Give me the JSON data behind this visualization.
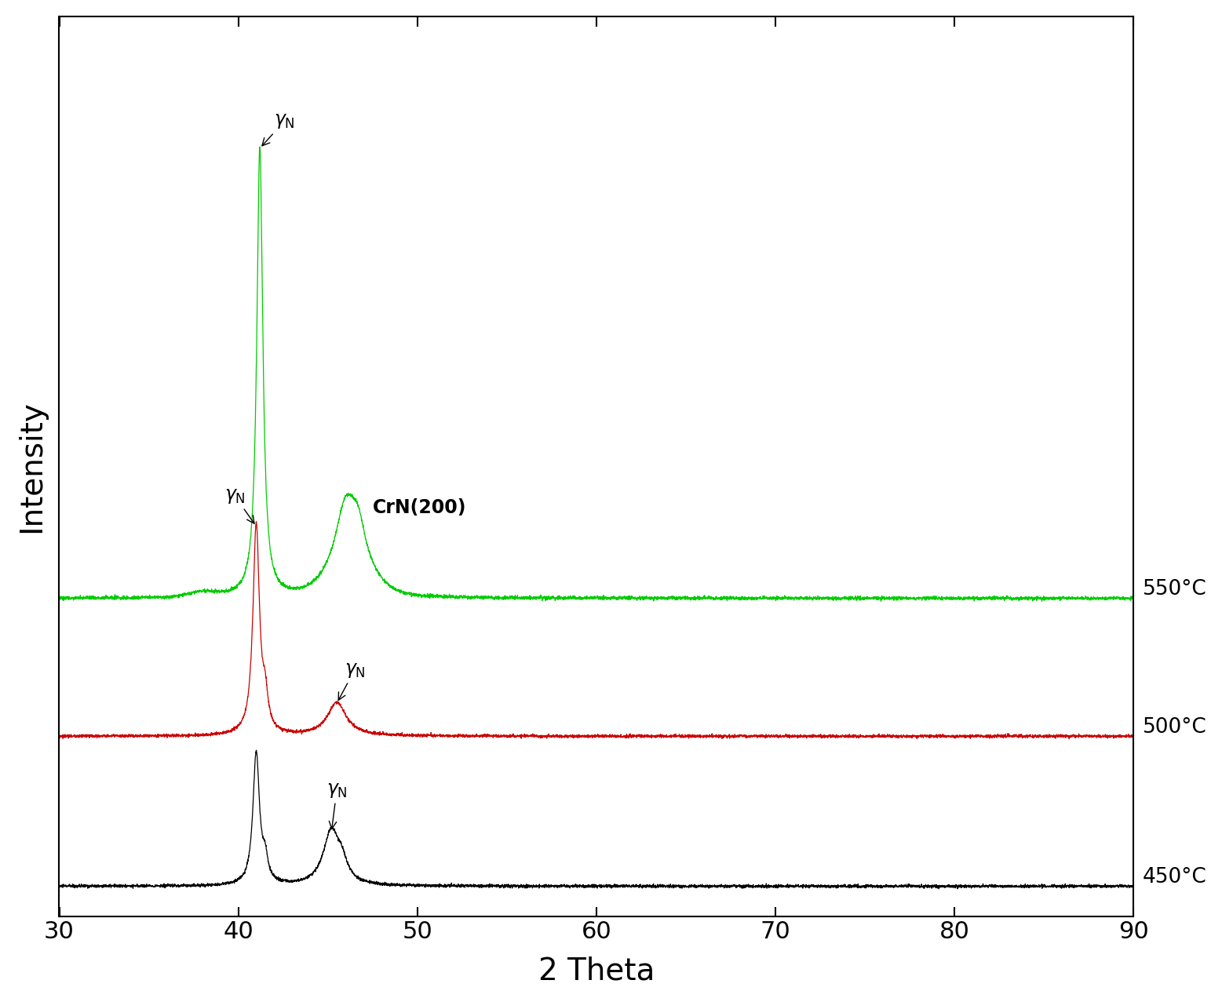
{
  "xlabel": "2 Theta",
  "ylabel": "Intensity",
  "xlim": [
    30,
    90
  ],
  "x_ticks": [
    30,
    40,
    50,
    60,
    70,
    80,
    90
  ],
  "colors": {
    "black": "#000000",
    "red": "#cc0000",
    "green": "#00cc00"
  },
  "labels": {
    "550": "550°C",
    "500": "500°C",
    "450": "450°C"
  },
  "background_color": "#ffffff",
  "figsize": [
    15.57,
    12.77
  ],
  "dpi": 100
}
